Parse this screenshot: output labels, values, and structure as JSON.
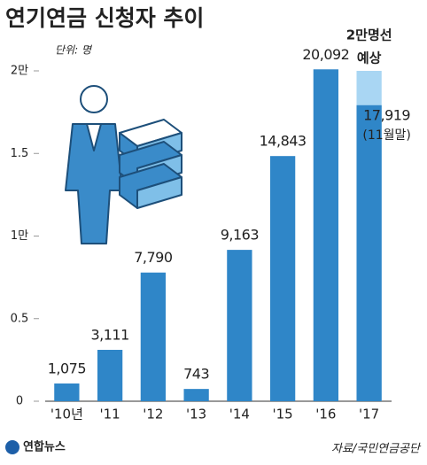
{
  "chart_data": {
    "type": "bar",
    "title": "연기연금 신청자 추이",
    "unit": "단위: 명",
    "categories": [
      "'10년",
      "'11",
      "'12",
      "'13",
      "'14",
      "'15",
      "'16",
      "'17"
    ],
    "values": [
      1075,
      3111,
      7790,
      743,
      9163,
      14843,
      20092,
      17919
    ],
    "value_labels": [
      "1,075",
      "3,111",
      "7,790",
      "743",
      "9,163",
      "14,843",
      "20,092",
      "17,919"
    ],
    "color": "#2f86c8",
    "ylim": [
      0,
      20500
    ],
    "yticks": [
      0,
      {
        "value": 5000,
        "label": "0.5"
      },
      {
        "value": 10000,
        "label": "1만"
      },
      {
        "value": 15000,
        "label": "1.5"
      },
      {
        "value": 20000,
        "label": "2만"
      }
    ],
    "grid": false,
    "projection": {
      "index": 7,
      "value": 20000,
      "label": [
        "2만명선",
        "예상"
      ],
      "color": "#a9d6f3"
    },
    "note": {
      "index": 7,
      "label": "(11월말)"
    },
    "source": "자료/국민연금공단",
    "credit": "연합뉴스"
  }
}
